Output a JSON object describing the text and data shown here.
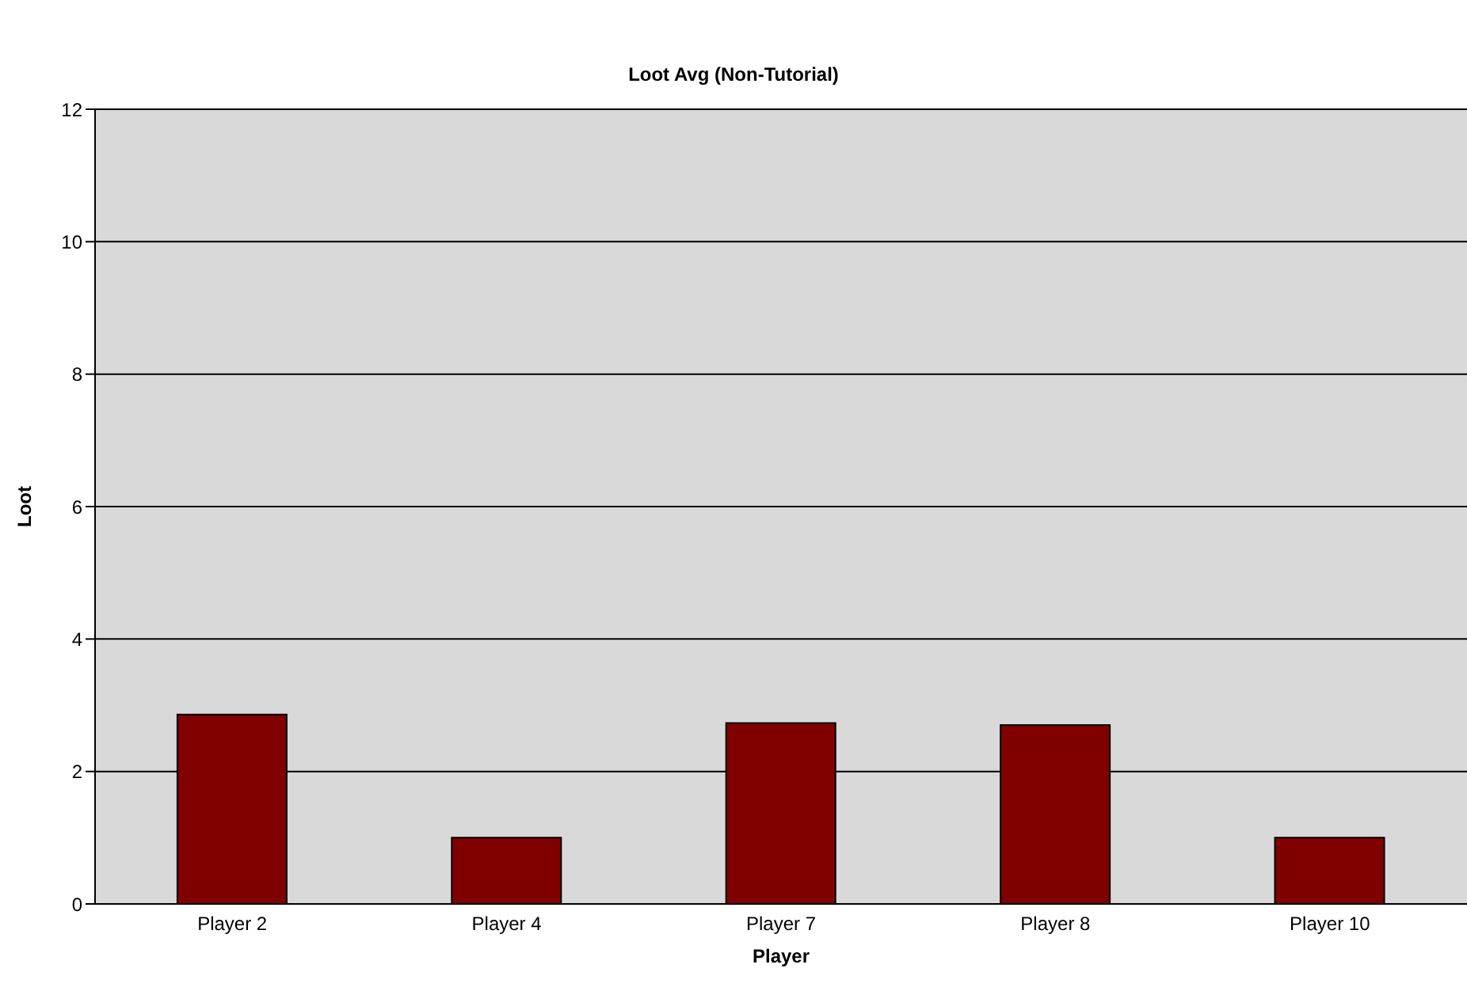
{
  "chart_data": {
    "type": "bar",
    "title": "Loot Avg (Non-Tutorial)",
    "xlabel": "Player",
    "ylabel": "Loot",
    "categories": [
      "Player 2",
      "Player 4",
      "Player 7",
      "Player 8",
      "Player 10"
    ],
    "values": [
      2.86,
      1.0,
      2.73,
      2.7,
      1.0
    ],
    "color": "#800000",
    "ylim": [
      0,
      12
    ],
    "yticks": [
      0,
      2,
      4,
      6,
      8,
      10,
      12
    ],
    "grid": "y"
  }
}
